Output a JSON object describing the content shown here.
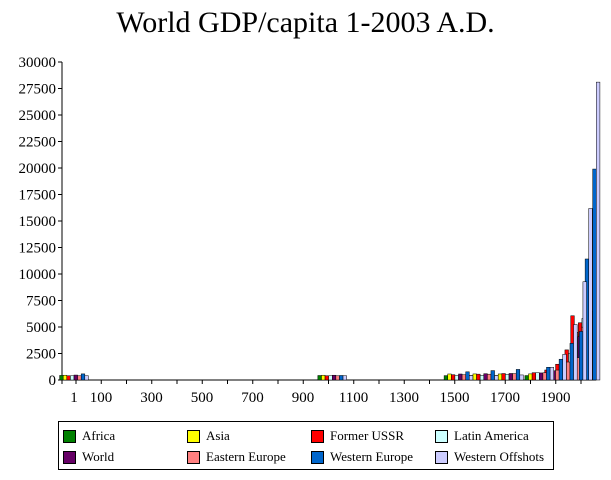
{
  "chart_data": {
    "type": "bar",
    "title": "World GDP/capita 1-2003 A.D.",
    "xlabel": "",
    "ylabel": "",
    "ylim": [
      0,
      30000
    ],
    "yticks": [
      0,
      2500,
      5000,
      7500,
      10000,
      12500,
      15000,
      17500,
      20000,
      22500,
      25000,
      27500,
      30000
    ],
    "xticks": [
      "1",
      "100",
      "300",
      "500",
      "700",
      "900",
      "1100",
      "1300",
      "1500",
      "1700",
      "1900"
    ],
    "x_years": [
      1,
      1000,
      1500,
      1600,
      1700,
      1820,
      1870,
      1913,
      1950,
      1973,
      2003
    ],
    "grid": false,
    "legend_position": "bottom",
    "series": [
      {
        "name": "Africa",
        "color": "#008000",
        "values": [
          430,
          425,
          414,
          422,
          421,
          420,
          500,
          637,
          890,
          1410,
          1550
        ]
      },
      {
        "name": "Asia",
        "color": "#ffff00",
        "values": [
          450,
          450,
          568,
          574,
          571,
          577,
          550,
          658,
          634,
          1226,
          4300
        ]
      },
      {
        "name": "Former USSR",
        "color": "#ff0000",
        "values": [
          400,
          400,
          499,
          552,
          611,
          688,
          943,
          1488,
          2841,
          6059,
          5400
        ]
      },
      {
        "name": "Latin America",
        "color": "#ccffff",
        "values": [
          400,
          400,
          416,
          438,
          527,
          691,
          676,
          1494,
          2503,
          4504,
          5800
        ]
      },
      {
        "name": "World",
        "color": "#660066",
        "values": [
          467,
          450,
          566,
          596,
          616,
          667,
          873,
          1526,
          2113,
          4091,
          6500
        ]
      },
      {
        "name": "Eastern Europe",
        "color": "#ff8080",
        "values": [
          400,
          400,
          496,
          548,
          606,
          683,
          937,
          1695,
          2111,
          4988,
          6500
        ]
      },
      {
        "name": "Western Europe",
        "color": "#0066cc",
        "values": [
          576,
          427,
          771,
          889,
          997,
          1202,
          1960,
          3457,
          4578,
          11416,
          19900
        ]
      },
      {
        "name": "Western Offshots",
        "color": "#ccccff",
        "values": [
          400,
          400,
          400,
          400,
          476,
          1202,
          2419,
          5233,
          9268,
          16179,
          28100
        ]
      }
    ]
  }
}
